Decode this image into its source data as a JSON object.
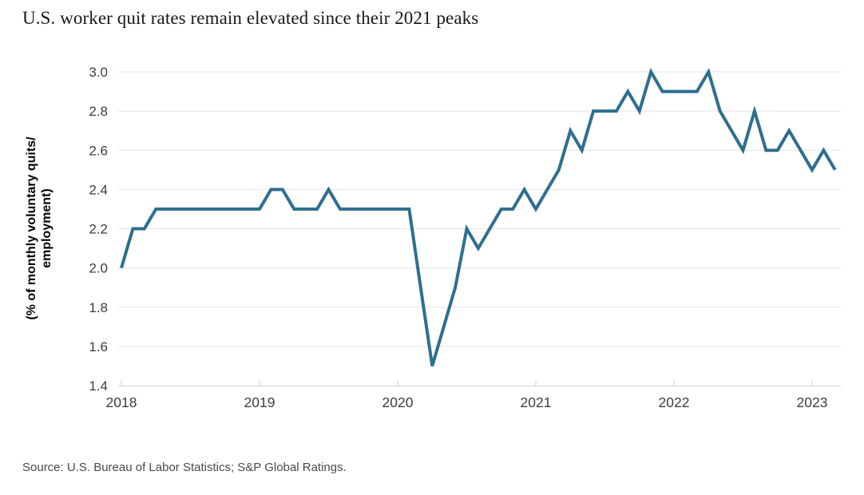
{
  "title": "U.S. worker quit rates remain elevated since their 2021 peaks",
  "source": "Source: U.S. Bureau of Labor Statistics; S&P Global Ratings.",
  "colors": {
    "line": "#2E6F8F",
    "grid": "#e9e9e9",
    "axis": "#d6d6d6",
    "tick_label": "#3d3d3d",
    "axis_title": "#000000",
    "title": "#191919",
    "source": "#4a4a4a"
  },
  "chart_data": {
    "type": "line",
    "title": "U.S. worker quit rates remain elevated since their 2021 peaks",
    "ylabel_lines": [
      "(% of monthly voluntary quits/",
      "employment)"
    ],
    "xlabel": "",
    "x_tick_labels": [
      "2018",
      "2019",
      "2020",
      "2021",
      "2022",
      "2023"
    ],
    "y_ticks": [
      1.4,
      1.6,
      1.8,
      2.0,
      2.2,
      2.4,
      2.6,
      2.8,
      3.0
    ],
    "ylim": [
      1.4,
      3.0
    ],
    "grid": "horizontal",
    "legend": "none",
    "x_start": "2018-01",
    "x_end": "2023-03",
    "x_frequency": "monthly",
    "series": [
      {
        "name": "U.S. quits rate (% of monthly voluntary quits/employment)",
        "color": "#2E6F8F",
        "values": [
          2.0,
          2.2,
          2.2,
          2.3,
          2.3,
          2.3,
          2.3,
          2.3,
          2.3,
          2.3,
          2.3,
          2.3,
          2.3,
          2.4,
          2.4,
          2.3,
          2.3,
          2.3,
          2.4,
          2.3,
          2.3,
          2.3,
          2.3,
          2.3,
          2.3,
          2.3,
          1.9,
          1.5,
          1.7,
          1.9,
          2.2,
          2.1,
          2.2,
          2.3,
          2.3,
          2.4,
          2.3,
          2.4,
          2.5,
          2.7,
          2.6,
          2.8,
          2.8,
          2.8,
          2.9,
          2.8,
          3.0,
          2.9,
          2.9,
          2.9,
          2.9,
          3.0,
          2.8,
          2.7,
          2.6,
          2.8,
          2.6,
          2.6,
          2.7,
          2.6,
          2.5,
          2.6,
          2.5
        ]
      }
    ]
  }
}
